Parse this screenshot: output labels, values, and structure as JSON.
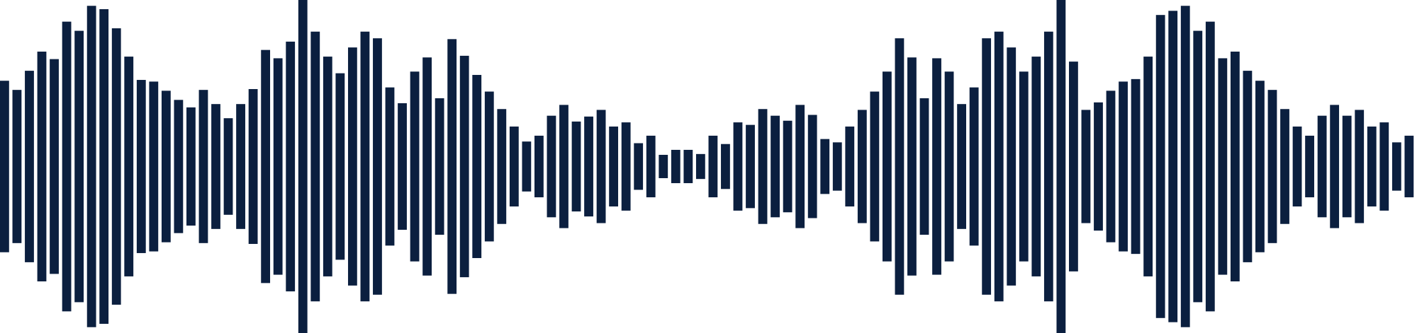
{
  "waveform": {
    "color": "#0b1f3f",
    "levels": [
      0.515,
      0.46,
      0.575,
      0.69,
      0.645,
      0.87,
      0.815,
      0.965,
      0.945,
      0.83,
      0.66,
      0.52,
      0.51,
      0.455,
      0.4,
      0.355,
      0.46,
      0.375,
      0.29,
      0.375,
      0.465,
      0.7,
      0.65,
      0.75,
      1.0,
      0.81,
      0.66,
      0.56,
      0.715,
      0.81,
      0.77,
      0.475,
      0.38,
      0.57,
      0.655,
      0.41,
      0.765,
      0.665,
      0.55,
      0.45,
      0.345,
      0.24,
      0.15,
      0.185,
      0.305,
      0.37,
      0.27,
      0.3,
      0.34,
      0.24,
      0.265,
      0.14,
      0.185,
      0.07,
      0.1,
      0.1,
      0.075,
      0.185,
      0.135,
      0.265,
      0.25,
      0.345,
      0.305,
      0.275,
      0.37,
      0.31,
      0.165,
      0.145,
      0.24,
      0.34,
      0.45,
      0.57,
      0.77,
      0.655,
      0.41,
      0.65,
      0.57,
      0.375,
      0.475,
      0.77,
      0.81,
      0.715,
      0.57,
      0.66,
      0.81,
      1.0,
      0.63,
      0.34,
      0.385,
      0.455,
      0.51,
      0.525,
      0.66,
      0.91,
      0.935,
      0.965,
      0.815,
      0.87,
      0.65,
      0.69,
      0.575,
      0.515,
      0.46,
      0.345,
      0.24,
      0.185,
      0.305,
      0.37,
      0.305,
      0.34,
      0.24,
      0.265,
      0.145,
      0.185
    ]
  }
}
